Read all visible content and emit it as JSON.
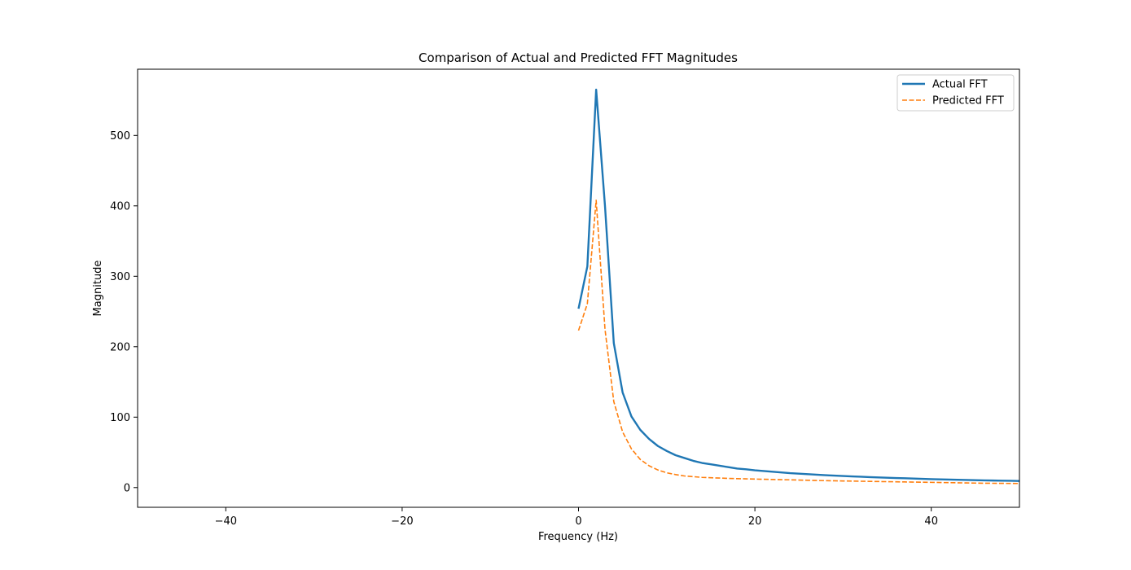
{
  "chart_data": {
    "type": "line",
    "title": "Comparison of Actual and Predicted FFT Magnitudes",
    "xlabel": "Frequency (Hz)",
    "ylabel": "Magnitude",
    "xlim": [
      -50,
      50
    ],
    "ylim": [
      -28,
      594
    ],
    "xticks": [
      -40,
      -20,
      0,
      20,
      40
    ],
    "xtick_labels": [
      "−40",
      "−20",
      "0",
      "20",
      "40"
    ],
    "yticks": [
      0,
      100,
      200,
      300,
      400,
      500
    ],
    "ytick_labels": [
      "0",
      "100",
      "200",
      "300",
      "400",
      "500"
    ],
    "grid": false,
    "legend_position": "top-right",
    "x": [
      0,
      1,
      2,
      3,
      4,
      5,
      6,
      7,
      8,
      9,
      10,
      11,
      12,
      13,
      14,
      15,
      16,
      17,
      18,
      19,
      20,
      21,
      22,
      23,
      24,
      25,
      26,
      27,
      28,
      29,
      30,
      31,
      32,
      33,
      34,
      35,
      36,
      37,
      38,
      39,
      40,
      41,
      42,
      43,
      44,
      45,
      46,
      47,
      48,
      49,
      50
    ],
    "series": [
      {
        "name": "Actual FFT",
        "color": "#1f77b4",
        "style": "solid",
        "values": [
          254,
          314,
          565,
          400,
          205,
          135,
          101,
          82,
          69,
          59,
          52,
          46,
          42,
          38,
          35,
          33,
          31,
          29,
          27,
          26,
          24.5,
          23.5,
          22.5,
          21.5,
          20.5,
          19.8,
          19,
          18.3,
          17.6,
          17,
          16.4,
          15.9,
          15.4,
          14.9,
          14.4,
          14,
          13.6,
          13.2,
          12.8,
          12.4,
          12,
          11.7,
          11.4,
          11.1,
          10.8,
          10.5,
          10.2,
          10,
          9.8,
          9.6,
          9.4
        ]
      },
      {
        "name": "Predicted FFT",
        "color": "#ff7f0e",
        "style": "dashed",
        "values": [
          223,
          261,
          408,
          225,
          122,
          79,
          55,
          40,
          31,
          25,
          21,
          18.5,
          16.5,
          15.5,
          14.5,
          14,
          13.5,
          13,
          12.7,
          12.4,
          12.1,
          11.8,
          11.5,
          11.2,
          11,
          10.7,
          10.4,
          10.1,
          9.8,
          9.6,
          9.4,
          9.2,
          9,
          8.8,
          8.6,
          8.4,
          8.2,
          8,
          7.8,
          7.6,
          7.4,
          7.2,
          7,
          6.8,
          6.6,
          6.4,
          6.2,
          6.1,
          6,
          5.9,
          5.8
        ]
      }
    ]
  }
}
